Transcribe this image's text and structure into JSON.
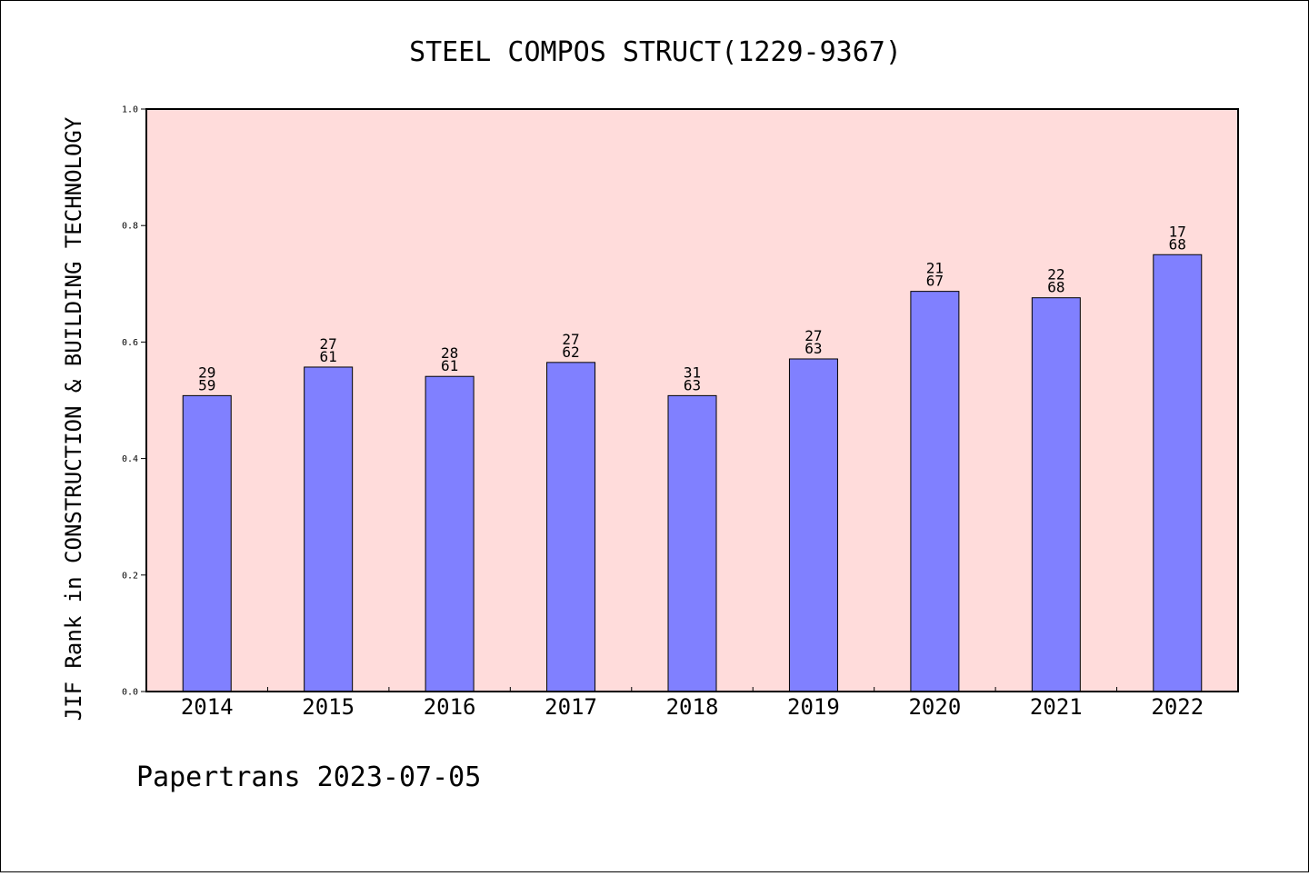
{
  "chart_data": {
    "type": "bar",
    "title": "STEEL COMPOS STRUCT(1229-9367)",
    "xlabel": "",
    "ylabel": "JIF Rank in CONSTRUCTION & BUILDING TECHNOLOGY",
    "ylim": [
      0.0,
      1.0
    ],
    "yticks": [
      "0.0",
      "0.2",
      "0.4",
      "0.6",
      "0.8",
      "1.0"
    ],
    "categories": [
      "2014",
      "2015",
      "2016",
      "2017",
      "2018",
      "2019",
      "2020",
      "2021",
      "2022"
    ],
    "values": [
      0.508,
      0.557,
      0.541,
      0.565,
      0.508,
      0.571,
      0.687,
      0.676,
      0.75
    ],
    "bar_labels": [
      {
        "rank": "29",
        "total": "59"
      },
      {
        "rank": "27",
        "total": "61"
      },
      {
        "rank": "28",
        "total": "61"
      },
      {
        "rank": "27",
        "total": "62"
      },
      {
        "rank": "31",
        "total": "63"
      },
      {
        "rank": "27",
        "total": "63"
      },
      {
        "rank": "21",
        "total": "67"
      },
      {
        "rank": "22",
        "total": "68"
      },
      {
        "rank": "17",
        "total": "68"
      }
    ],
    "grid": false,
    "colors": {
      "bar": "#8080ff",
      "plot_background": "#ffdcdb",
      "bar_edge": "#000000"
    }
  },
  "footer": "Papertrans 2023-07-05"
}
